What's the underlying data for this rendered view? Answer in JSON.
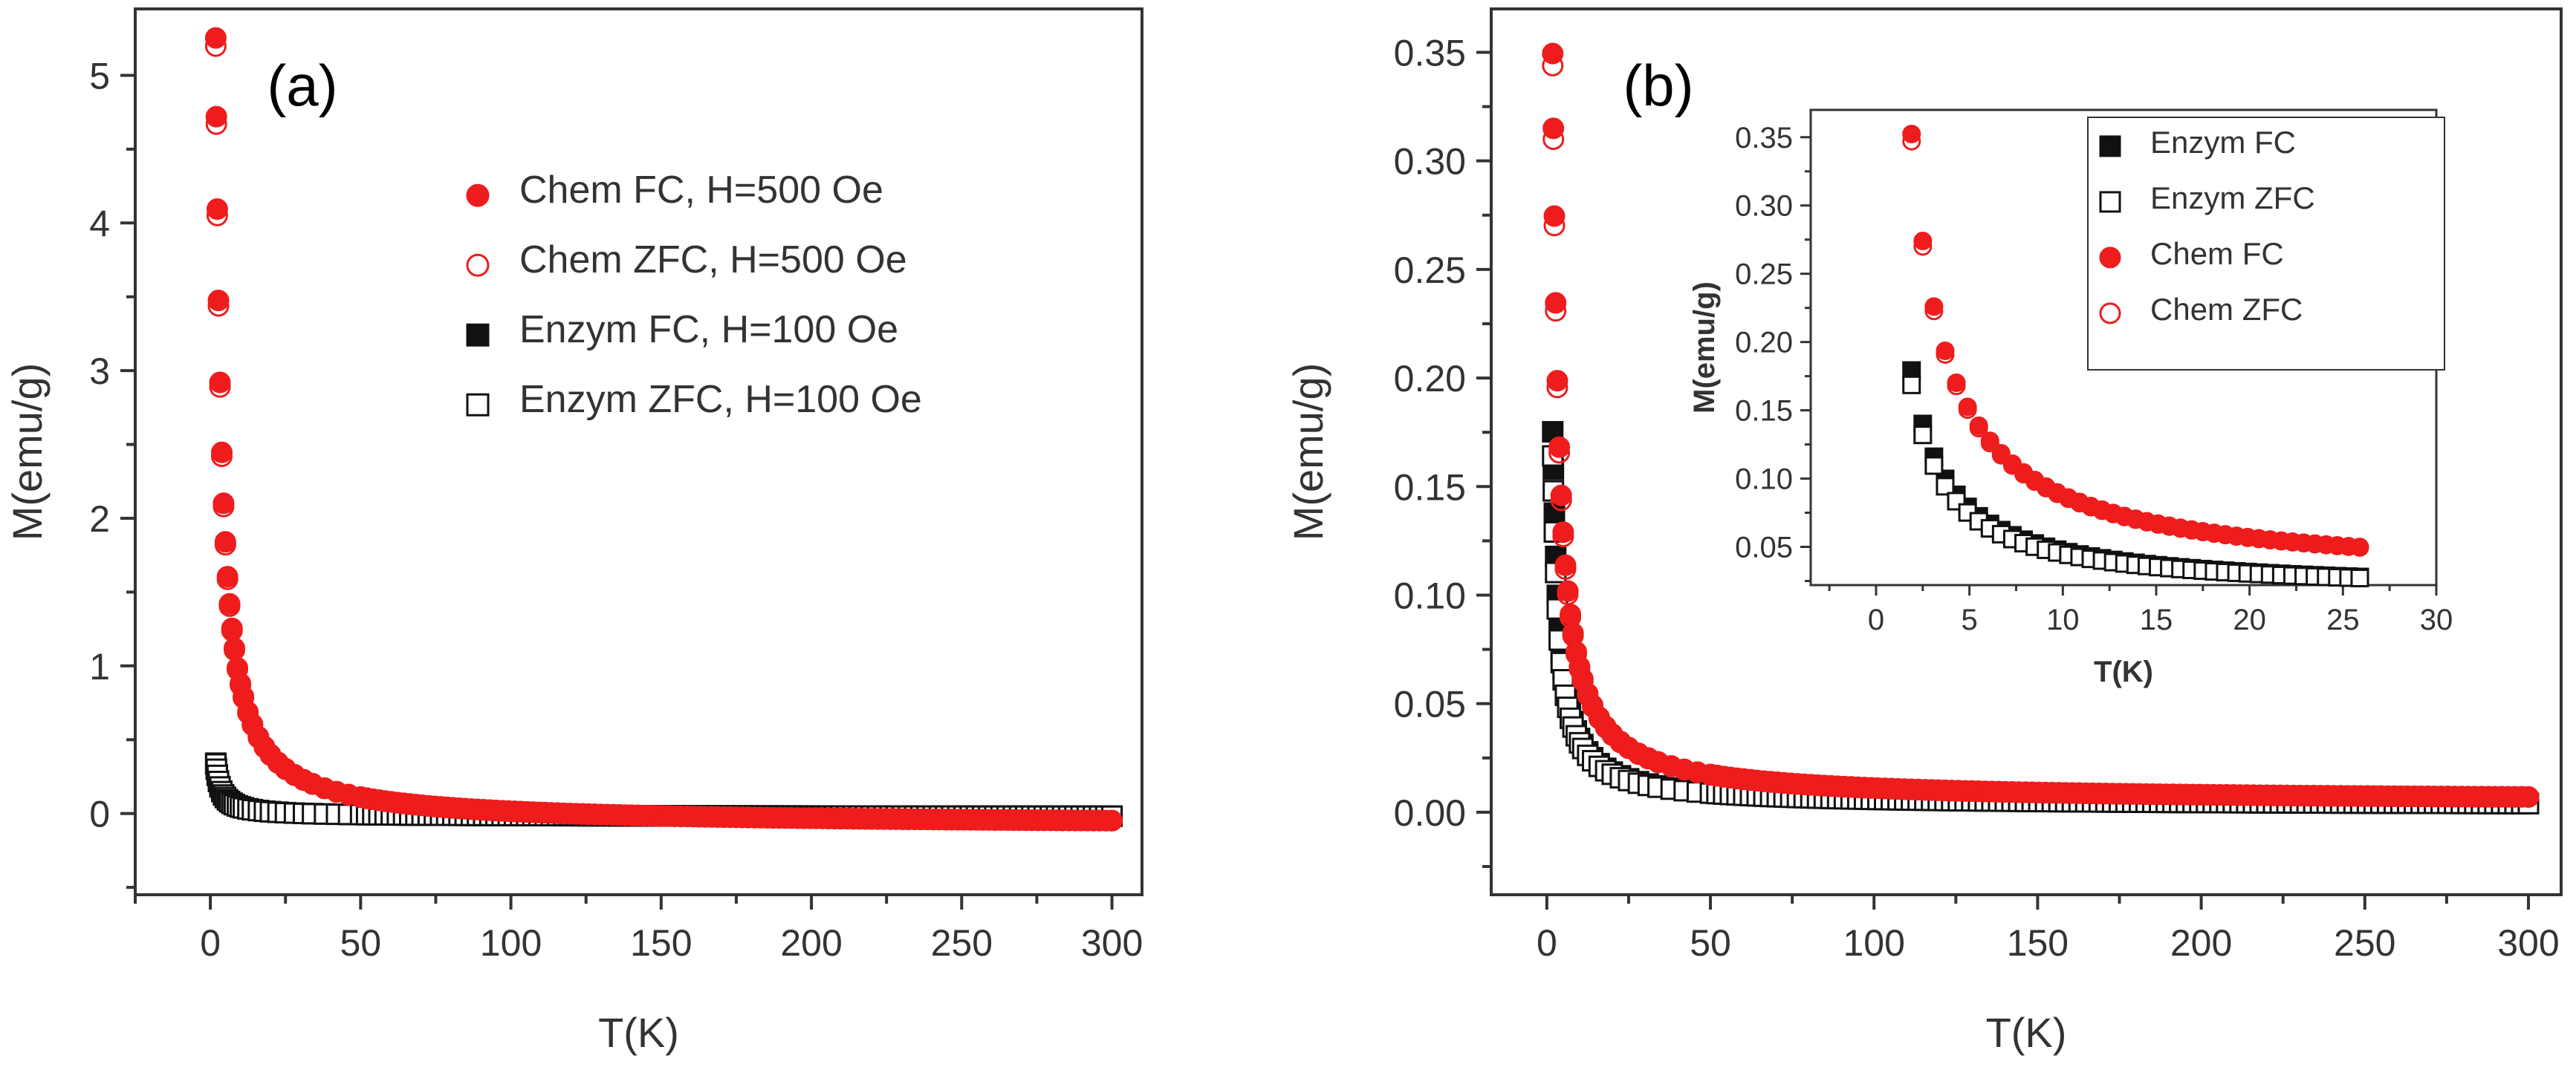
{
  "colors": {
    "chem": "#ee1c1c",
    "enzym": "#111111",
    "axis": "#333333"
  },
  "chart_data": [
    {
      "type": "scatter",
      "panel_label": "(a)",
      "xlabel": "T(K)",
      "ylabel": "M(emu/g)",
      "xlim": [
        -25,
        310
      ],
      "ylim": [
        -0.55,
        5.45
      ],
      "xticks": [
        0,
        50,
        100,
        150,
        200,
        250,
        300
      ],
      "yticks": [
        0,
        1,
        2,
        3,
        4,
        5
      ],
      "legend_position": "top-right",
      "series": [
        {
          "name": "Chem FC, H=500 Oe",
          "marker": "filled-circle",
          "color": "#ee1c1c",
          "A": 9.6,
          "B": -0.08,
          "points": 150
        },
        {
          "name": "Chem ZFC, H=500 Oe",
          "marker": "open-circle",
          "color": "#ee1c1c",
          "A": 9.5,
          "B": -0.08,
          "points": 150
        },
        {
          "name": "Enzym FC, H=100 Oe",
          "marker": "filled-square",
          "color": "#111111",
          "A": 0.65,
          "B": -0.02,
          "points": 150
        },
        {
          "name": "Enzym ZFC, H=100 Oe",
          "marker": "open-square",
          "color": "#111111",
          "A": 0.64,
          "B": -0.02,
          "points": 150
        }
      ]
    },
    {
      "type": "scatter",
      "panel_label": "(b)",
      "xlabel": "T(K)",
      "ylabel": "M(emu/g)",
      "xlim": [
        -17,
        310
      ],
      "ylim": [
        -0.038,
        0.37
      ],
      "xticks": [
        0,
        50,
        100,
        150,
        200,
        250,
        300
      ],
      "yticks": [
        0.0,
        0.05,
        0.1,
        0.15,
        0.2,
        0.25,
        0.3,
        0.35
      ],
      "legend_position": "top-right",
      "series": [
        {
          "name": "Enzym FC",
          "marker": "filled-square",
          "color": "#111111",
          "A": 0.31,
          "B": 0.003,
          "points": 150
        },
        {
          "name": "Enzym ZFC",
          "marker": "open-square",
          "color": "#111111",
          "A": 0.29,
          "B": 0.003,
          "points": 150
        },
        {
          "name": "Chem FC",
          "marker": "filled-circle",
          "color": "#ee1c1c",
          "A": 0.62,
          "B": 0.005,
          "points": 150
        },
        {
          "name": "Chem ZFC",
          "marker": "open-circle",
          "color": "#ee1c1c",
          "A": 0.61,
          "B": 0.005,
          "points": 150
        }
      ],
      "inset": {
        "xlabel": "T(K)",
        "ylabel": "M(emu/g)",
        "xlim": [
          -3.5,
          30
        ],
        "ylim": [
          0.022,
          0.37
        ],
        "xticks": [
          0,
          5,
          10,
          15,
          20,
          25,
          30
        ],
        "yticks": [
          0.05,
          0.1,
          0.15,
          0.2,
          0.25,
          0.3,
          0.35
        ],
        "series": [
          {
            "name": "Enzym FC",
            "marker": "filled-square",
            "color": "#111111",
            "A": 0.31,
            "B": 0.016,
            "xmax": 26
          },
          {
            "name": "Enzym ZFC",
            "marker": "open-square",
            "color": "#111111",
            "A": 0.29,
            "B": 0.016,
            "xmax": 26
          },
          {
            "name": "Chem FC",
            "marker": "filled-circle",
            "color": "#ee1c1c",
            "A": 0.62,
            "B": 0.026,
            "xmax": 26
          },
          {
            "name": "Chem ZFC",
            "marker": "open-circle",
            "color": "#ee1c1c",
            "A": 0.61,
            "B": 0.026,
            "xmax": 26
          }
        ]
      }
    }
  ]
}
